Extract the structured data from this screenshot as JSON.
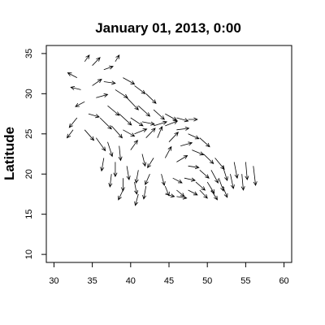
{
  "chart_data": {
    "type": "vector-field",
    "title": "January 01, 2013, 0:00",
    "xlabel": "",
    "ylabel": "Latitude",
    "xlim": [
      29,
      61
    ],
    "ylim": [
      9,
      36
    ],
    "xticks": [
      30,
      35,
      40,
      45,
      50,
      55,
      60
    ],
    "yticks": [
      10,
      15,
      20,
      25,
      30,
      35
    ],
    "grid": false,
    "arrow_color": "#000000",
    "arrows": [
      {
        "x": 33.0,
        "y": 32.0,
        "dx": -1.2,
        "dy": 0.6
      },
      {
        "x": 34.0,
        "y": 34.0,
        "dx": 0.6,
        "dy": 0.8
      },
      {
        "x": 35.0,
        "y": 33.5,
        "dx": 1.0,
        "dy": 1.0
      },
      {
        "x": 36.5,
        "y": 33.0,
        "dx": 1.2,
        "dy": 0.4
      },
      {
        "x": 38.0,
        "y": 34.0,
        "dx": 0.5,
        "dy": 0.8
      },
      {
        "x": 39.0,
        "y": 32.0,
        "dx": 1.5,
        "dy": -0.8
      },
      {
        "x": 40.5,
        "y": 31.0,
        "dx": 1.4,
        "dy": -1.0
      },
      {
        "x": 42.0,
        "y": 30.0,
        "dx": 1.3,
        "dy": -1.2
      },
      {
        "x": 33.5,
        "y": 30.5,
        "dx": -1.3,
        "dy": 0.3
      },
      {
        "x": 35.0,
        "y": 31.0,
        "dx": 1.2,
        "dy": 0.8
      },
      {
        "x": 36.5,
        "y": 31.5,
        "dx": 1.5,
        "dy": -0.2
      },
      {
        "x": 38.0,
        "y": 30.5,
        "dx": 1.6,
        "dy": -1.0
      },
      {
        "x": 39.5,
        "y": 29.5,
        "dx": 1.5,
        "dy": -1.5
      },
      {
        "x": 41.0,
        "y": 28.5,
        "dx": 1.5,
        "dy": -1.3
      },
      {
        "x": 43.0,
        "y": 28.0,
        "dx": 1.4,
        "dy": -1.2
      },
      {
        "x": 44.5,
        "y": 27.5,
        "dx": 1.5,
        "dy": -0.8
      },
      {
        "x": 46.0,
        "y": 27.0,
        "dx": 1.5,
        "dy": -0.4
      },
      {
        "x": 47.5,
        "y": 26.8,
        "dx": 1.2,
        "dy": 0.0
      },
      {
        "x": 34.0,
        "y": 29.0,
        "dx": -1.2,
        "dy": -0.6
      },
      {
        "x": 35.5,
        "y": 29.5,
        "dx": 1.5,
        "dy": 0.4
      },
      {
        "x": 37.0,
        "y": 28.5,
        "dx": 1.5,
        "dy": -1.2
      },
      {
        "x": 38.5,
        "y": 27.5,
        "dx": 1.6,
        "dy": -1.4
      },
      {
        "x": 40.0,
        "y": 27.0,
        "dx": 1.6,
        "dy": -1.0
      },
      {
        "x": 41.5,
        "y": 26.5,
        "dx": 1.6,
        "dy": -0.3
      },
      {
        "x": 43.0,
        "y": 26.0,
        "dx": 1.7,
        "dy": 0.5
      },
      {
        "x": 44.5,
        "y": 26.0,
        "dx": 1.6,
        "dy": 0.6
      },
      {
        "x": 46.0,
        "y": 25.5,
        "dx": 1.6,
        "dy": 0.2
      },
      {
        "x": 47.5,
        "y": 25.0,
        "dx": 1.4,
        "dy": -0.6
      },
      {
        "x": 49.0,
        "y": 24.5,
        "dx": 1.3,
        "dy": -1.1
      },
      {
        "x": 33.0,
        "y": 27.0,
        "dx": -1.0,
        "dy": -1.2
      },
      {
        "x": 34.5,
        "y": 27.5,
        "dx": 1.4,
        "dy": -0.4
      },
      {
        "x": 36.0,
        "y": 27.0,
        "dx": 1.5,
        "dy": -1.4
      },
      {
        "x": 37.5,
        "y": 26.0,
        "dx": 1.4,
        "dy": -1.5
      },
      {
        "x": 39.0,
        "y": 25.5,
        "dx": 1.5,
        "dy": -0.8
      },
      {
        "x": 40.5,
        "y": 25.0,
        "dx": 1.6,
        "dy": 0.6
      },
      {
        "x": 42.0,
        "y": 24.5,
        "dx": 1.2,
        "dy": 1.2
      },
      {
        "x": 43.5,
        "y": 24.5,
        "dx": 0.6,
        "dy": 1.4
      },
      {
        "x": 45.0,
        "y": 24.0,
        "dx": 1.2,
        "dy": 1.2
      },
      {
        "x": 46.5,
        "y": 23.5,
        "dx": 1.5,
        "dy": 0.4
      },
      {
        "x": 48.0,
        "y": 23.0,
        "dx": 1.5,
        "dy": -0.6
      },
      {
        "x": 49.5,
        "y": 22.5,
        "dx": 1.3,
        "dy": -1.2
      },
      {
        "x": 51.0,
        "y": 22.0,
        "dx": 1.2,
        "dy": -1.4
      },
      {
        "x": 32.5,
        "y": 25.5,
        "dx": -0.8,
        "dy": -1.0
      },
      {
        "x": 34.0,
        "y": 25.5,
        "dx": 1.2,
        "dy": -1.3
      },
      {
        "x": 35.5,
        "y": 24.5,
        "dx": 1.2,
        "dy": -1.6
      },
      {
        "x": 37.0,
        "y": 24.0,
        "dx": 0.6,
        "dy": -1.8
      },
      {
        "x": 38.5,
        "y": 23.5,
        "dx": 0.2,
        "dy": -1.8
      },
      {
        "x": 40.0,
        "y": 23.0,
        "dx": 0.9,
        "dy": 1.2
      },
      {
        "x": 41.5,
        "y": 22.5,
        "dx": 0.4,
        "dy": -1.5
      },
      {
        "x": 43.0,
        "y": 22.0,
        "dx": -0.8,
        "dy": -1.2
      },
      {
        "x": 44.5,
        "y": 22.0,
        "dx": 0.8,
        "dy": 1.4
      },
      {
        "x": 46.0,
        "y": 21.5,
        "dx": 1.4,
        "dy": 0.8
      },
      {
        "x": 47.5,
        "y": 21.0,
        "dx": 1.4,
        "dy": -0.2
      },
      {
        "x": 49.0,
        "y": 20.5,
        "dx": 1.2,
        "dy": -1.0
      },
      {
        "x": 50.5,
        "y": 20.5,
        "dx": 0.9,
        "dy": -1.6
      },
      {
        "x": 52.0,
        "y": 21.0,
        "dx": 0.6,
        "dy": -1.8
      },
      {
        "x": 53.5,
        "y": 21.5,
        "dx": 0.4,
        "dy": -2.0
      },
      {
        "x": 55.0,
        "y": 21.5,
        "dx": 0.2,
        "dy": -2.2
      },
      {
        "x": 56.0,
        "y": 21.0,
        "dx": 0.3,
        "dy": -2.4
      },
      {
        "x": 36.5,
        "y": 22.0,
        "dx": -0.3,
        "dy": -1.6
      },
      {
        "x": 38.0,
        "y": 21.5,
        "dx": 0.0,
        "dy": -1.8
      },
      {
        "x": 39.5,
        "y": 21.0,
        "dx": 0.3,
        "dy": -1.7
      },
      {
        "x": 41.0,
        "y": 20.5,
        "dx": -0.3,
        "dy": -1.6
      },
      {
        "x": 42.5,
        "y": 20.0,
        "dx": -0.6,
        "dy": -1.3
      },
      {
        "x": 44.0,
        "y": 20.0,
        "dx": 0.4,
        "dy": -1.4
      },
      {
        "x": 45.5,
        "y": 19.5,
        "dx": 1.2,
        "dy": -0.6
      },
      {
        "x": 47.0,
        "y": 19.5,
        "dx": 1.4,
        "dy": -0.3
      },
      {
        "x": 48.5,
        "y": 19.0,
        "dx": 1.2,
        "dy": -1.0
      },
      {
        "x": 50.0,
        "y": 19.0,
        "dx": 0.9,
        "dy": -1.4
      },
      {
        "x": 51.5,
        "y": 19.5,
        "dx": 0.6,
        "dy": -1.6
      },
      {
        "x": 53.0,
        "y": 20.0,
        "dx": 0.4,
        "dy": -1.8
      },
      {
        "x": 54.5,
        "y": 20.0,
        "dx": 0.2,
        "dy": -2.0
      },
      {
        "x": 39.0,
        "y": 19.5,
        "dx": 0.0,
        "dy": -1.6
      },
      {
        "x": 40.5,
        "y": 19.0,
        "dx": 0.3,
        "dy": -1.5
      },
      {
        "x": 42.0,
        "y": 18.5,
        "dx": -0.3,
        "dy": -1.6
      },
      {
        "x": 44.5,
        "y": 18.5,
        "dx": 0.5,
        "dy": -1.2
      },
      {
        "x": 46.0,
        "y": 18.0,
        "dx": 1.0,
        "dy": -0.8
      },
      {
        "x": 47.5,
        "y": 18.0,
        "dx": 1.2,
        "dy": -0.6
      },
      {
        "x": 49.0,
        "y": 18.0,
        "dx": 1.0,
        "dy": -1.0
      },
      {
        "x": 50.5,
        "y": 18.0,
        "dx": 0.8,
        "dy": -1.2
      },
      {
        "x": 52.0,
        "y": 18.5,
        "dx": 0.6,
        "dy": -1.4
      },
      {
        "x": 44.5,
        "y": 17.5,
        "dx": 1.2,
        "dy": -0.3
      },
      {
        "x": 46.0,
        "y": 17.2,
        "dx": 1.3,
        "dy": -0.2
      },
      {
        "x": 41.0,
        "y": 17.5,
        "dx": -0.4,
        "dy": -1.4
      },
      {
        "x": 39.0,
        "y": 18.0,
        "dx": -0.6,
        "dy": -1.2
      },
      {
        "x": 37.5,
        "y": 20.0,
        "dx": -0.2,
        "dy": -1.6
      }
    ]
  }
}
